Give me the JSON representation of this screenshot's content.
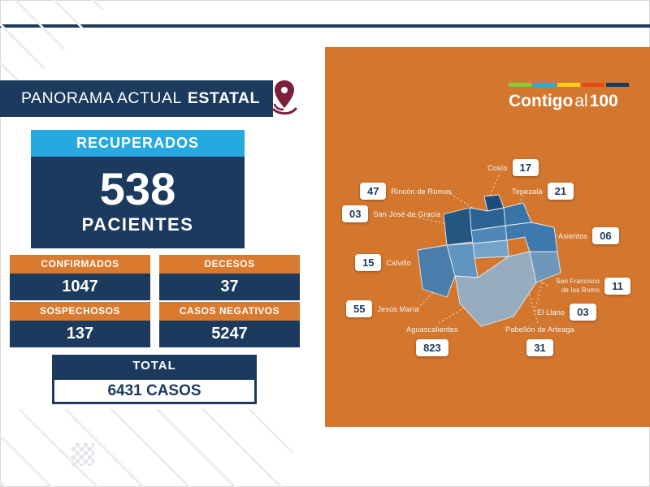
{
  "header": {
    "title_light": "PANORAMA ACTUAL",
    "title_bold": "ESTATAL"
  },
  "recovered": {
    "label": "RECUPERADOS",
    "value": "538",
    "unit": "PACIENTES"
  },
  "stats": [
    {
      "label": "CONFIRMADOS",
      "value": "1047"
    },
    {
      "label": "DECESOS",
      "value": "37"
    },
    {
      "label": "SOSPECHOSOS",
      "value": "137"
    },
    {
      "label": "CASOS NEGATIVOS",
      "value": "5247"
    }
  ],
  "total": {
    "label": "TOTAL",
    "value": "6431 CASOS"
  },
  "logo": {
    "part1": "Contigo",
    "part2": "al",
    "part3": "100",
    "bar_colors": [
      "#8DC63F",
      "#29ABE2",
      "#F7D117",
      "#E8491D",
      "#1B3A5E"
    ]
  },
  "map": {
    "municipalities": [
      {
        "name": "Cosío",
        "value": "17"
      },
      {
        "name": "Rincón de Romos",
        "value": "47"
      },
      {
        "name": "Tepezalá",
        "value": "21"
      },
      {
        "name": "San José de Gracia",
        "value": "03"
      },
      {
        "name": "Asientos",
        "value": "06"
      },
      {
        "name": "Calvillo",
        "value": "15"
      },
      {
        "name": "San Francisco de los Romo",
        "value": "11"
      },
      {
        "name": "Jesús María",
        "value": "55"
      },
      {
        "name": "El Llano",
        "value": "03"
      },
      {
        "name": "Aguascalientes",
        "value": "823"
      },
      {
        "name": "Pabellón de Arteaga",
        "value": "31"
      }
    ]
  },
  "colors": {
    "navy": "#1B3A5E",
    "orange": "#D4772E",
    "cyan": "#25A9E0",
    "pin_maroon": "#7C1F3D"
  },
  "chart_data": [
    {
      "type": "table",
      "title": "PANORAMA ACTUAL ESTATAL",
      "categories": [
        "RECUPERADOS (PACIENTES)",
        "CONFIRMADOS",
        "DECESOS",
        "SOSPECHOSOS",
        "CASOS NEGATIVOS",
        "TOTAL CASOS"
      ],
      "values": [
        538,
        1047,
        37,
        137,
        5247,
        6431
      ]
    },
    {
      "type": "heatmap",
      "title": "Casos por municipio (mapa de Aguascalientes)",
      "categories": [
        "Cosío",
        "Rincón de Romos",
        "Tepezalá",
        "San José de Gracia",
        "Asientos",
        "Calvillo",
        "San Francisco de los Romo",
        "Jesús María",
        "El Llano",
        "Aguascalientes",
        "Pabellón de Arteaga"
      ],
      "values": [
        17,
        47,
        21,
        3,
        6,
        15,
        11,
        55,
        3,
        823,
        31
      ]
    }
  ]
}
